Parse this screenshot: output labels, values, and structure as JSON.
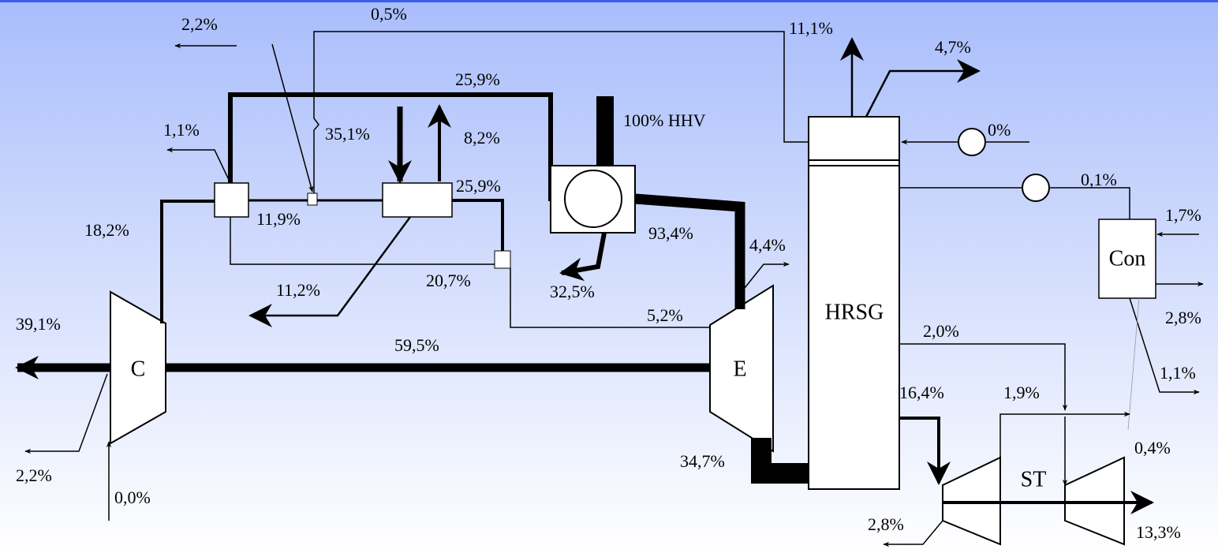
{
  "components": {
    "compressor": "C",
    "expander": "E",
    "hrsg": "HRSG",
    "condenser": "Con",
    "steam_turbine": "ST"
  },
  "fuel": "100% HHV",
  "labels": [
    "0,5%",
    "2,2%",
    "11,1%",
    "4,7%",
    "25,9%",
    "35,1%",
    "8,2%",
    "1,1%",
    "0%",
    "25,9%",
    "0,1%",
    "11,9%",
    "18,2%",
    "93,4%",
    "1,7%",
    "4,4%",
    "20,7%",
    "11,2%",
    "32,5%",
    "5,2%",
    "39,1%",
    "2,8%",
    "2,0%",
    "59,5%",
    "1,1%",
    "16,4%",
    "1,9%",
    "34,7%",
    "0,4%",
    "2,2%",
    "0,0%",
    "2,8%",
    "13,3%"
  ]
}
